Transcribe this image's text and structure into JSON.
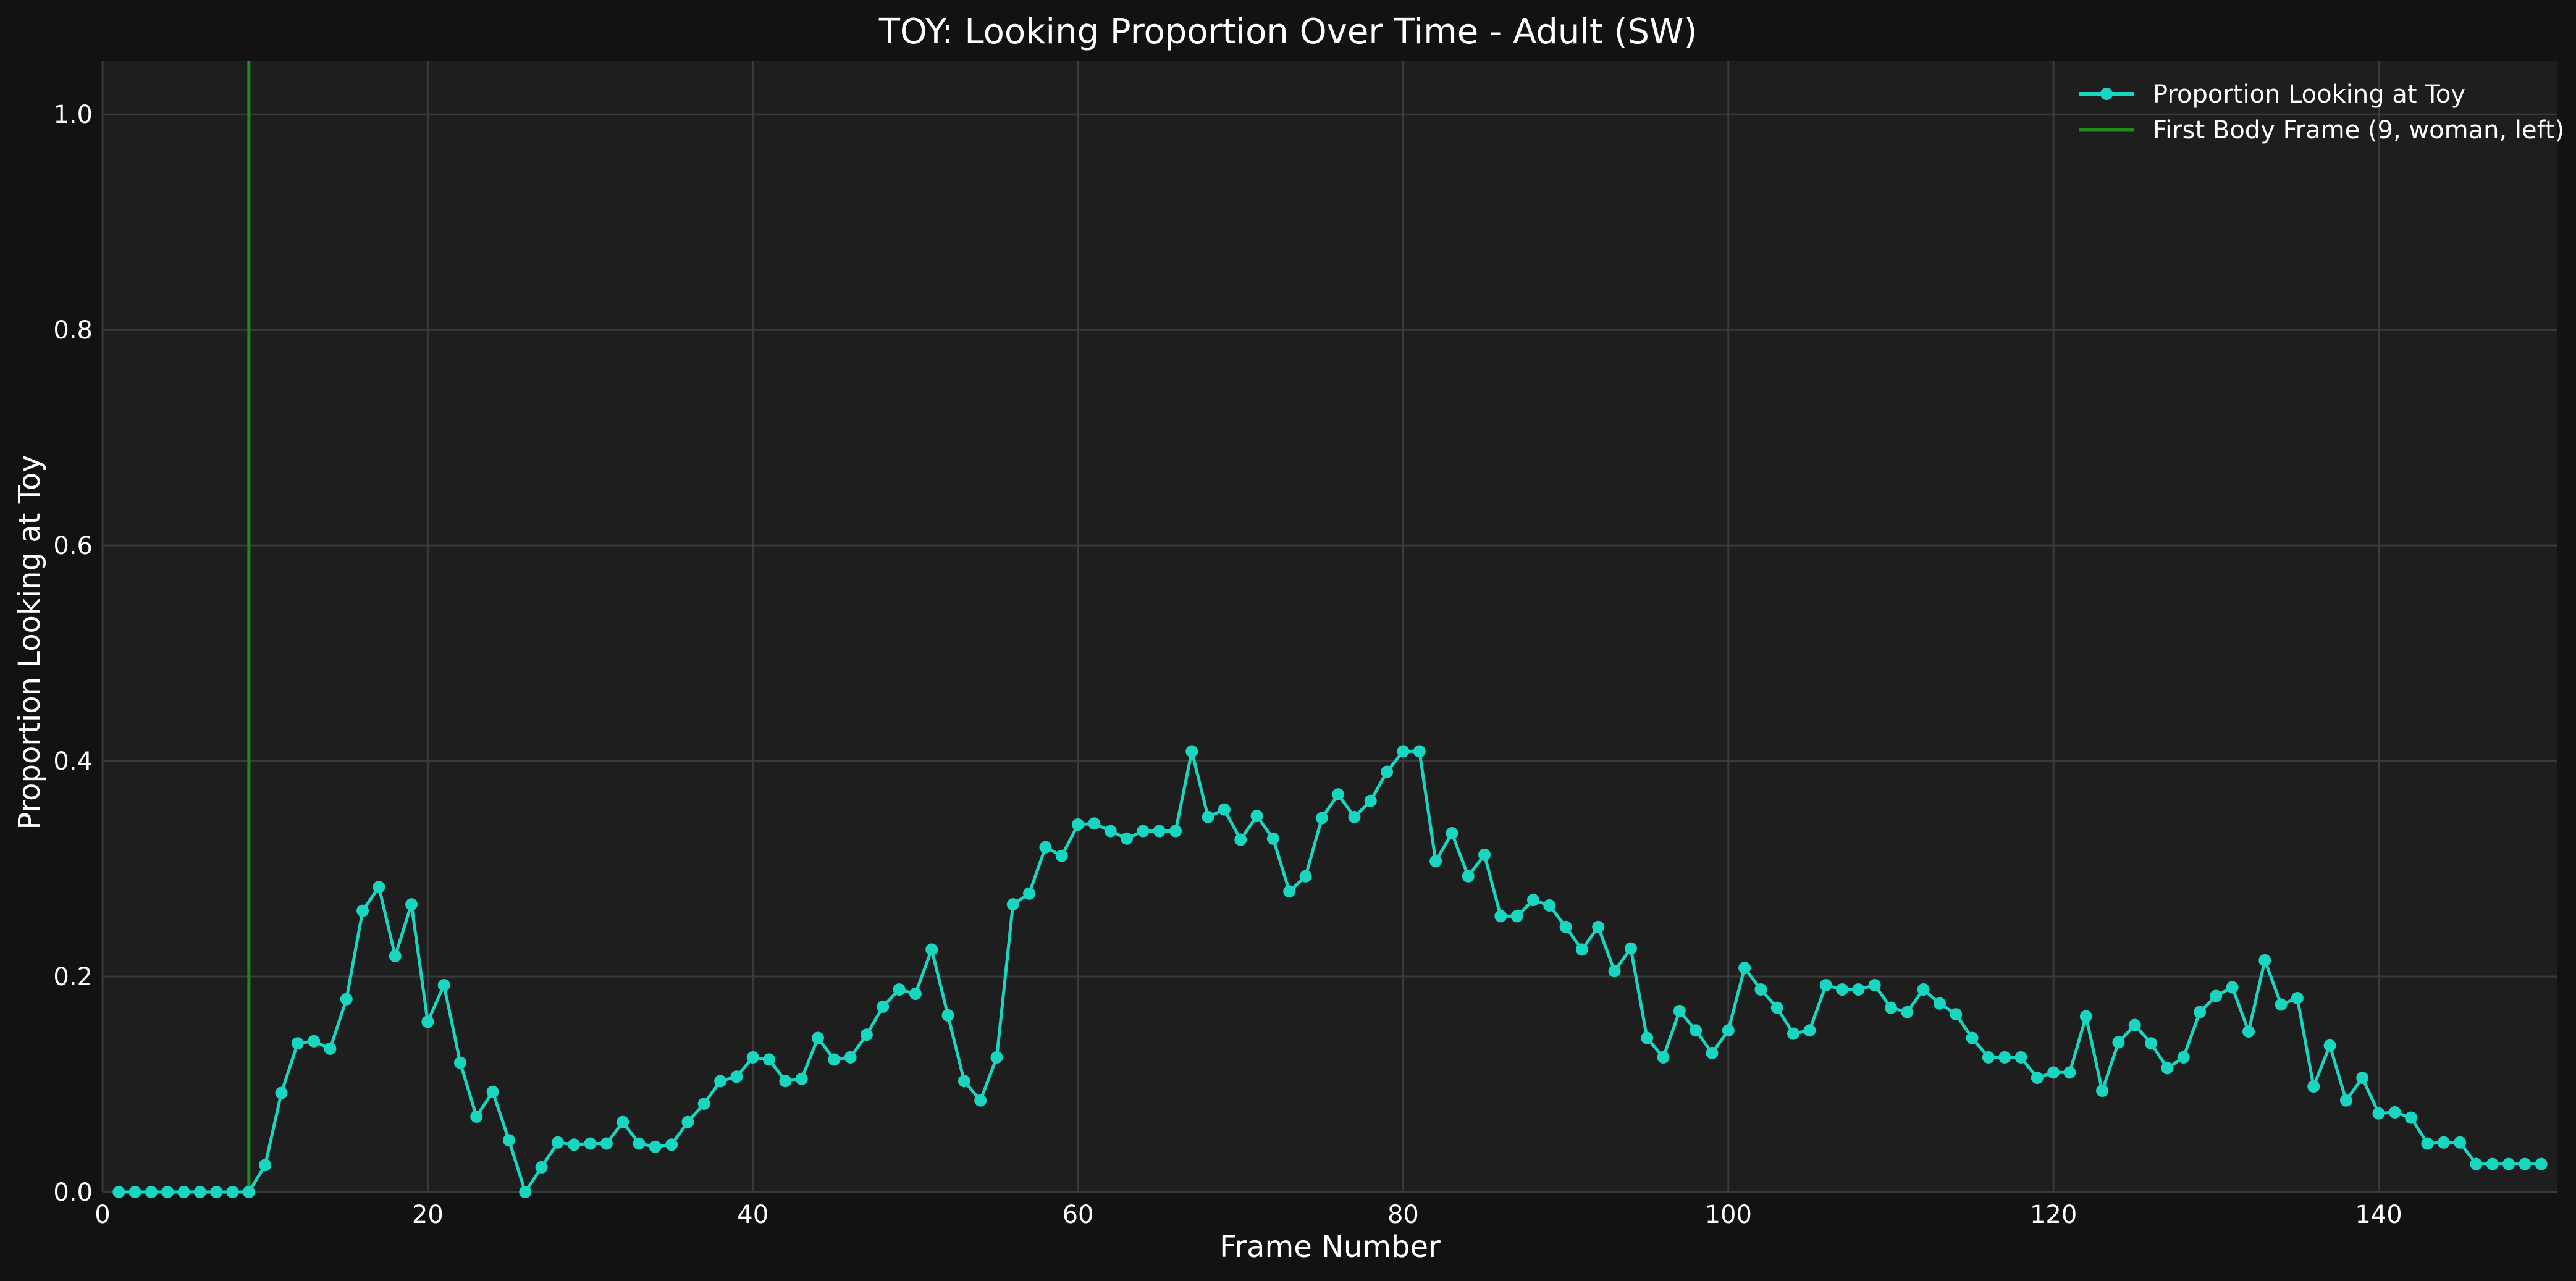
{
  "chart_data": {
    "type": "line",
    "title": "TOY: Looking Proportion Over Time - Adult (SW)",
    "xlabel": "Frame Number",
    "ylabel": "Proportion Looking at Toy",
    "xlim": [
      0,
      151
    ],
    "ylim": [
      0,
      1.05
    ],
    "xticks": [
      0,
      20,
      40,
      60,
      80,
      100,
      120,
      140
    ],
    "yticks": [
      0.0,
      0.2,
      0.4,
      0.6,
      0.8,
      1.0
    ],
    "grid": true,
    "legend_position": "top-right",
    "colors": {
      "background": "#121212",
      "plot_background": "#1e1e1e",
      "series": "#18d6c0",
      "marker_line": "#1a8c1a",
      "text": "#ffffff"
    },
    "series": [
      {
        "name": "Proportion Looking at Toy",
        "x": [
          1,
          2,
          3,
          4,
          5,
          6,
          7,
          8,
          9,
          10,
          11,
          12,
          13,
          14,
          15,
          16,
          17,
          18,
          19,
          20,
          21,
          22,
          23,
          24,
          25,
          26,
          27,
          28,
          29,
          30,
          31,
          32,
          33,
          34,
          35,
          36,
          37,
          38,
          39,
          40,
          41,
          42,
          43,
          44,
          45,
          46,
          47,
          48,
          49,
          50,
          51,
          52,
          53,
          54,
          55,
          56,
          57,
          58,
          59,
          60,
          61,
          62,
          63,
          64,
          65,
          66,
          67,
          68,
          69,
          70,
          71,
          72,
          73,
          74,
          75,
          76,
          77,
          78,
          79,
          80,
          81,
          82,
          83,
          84,
          85,
          86,
          87,
          88,
          89,
          90,
          91,
          92,
          93,
          94,
          95,
          96,
          97,
          98,
          99,
          100,
          101,
          102,
          103,
          104,
          105,
          106,
          107,
          108,
          109,
          110,
          111,
          112,
          113,
          114,
          115,
          116,
          117,
          118,
          119,
          120,
          121,
          122,
          123,
          124,
          125,
          126,
          127,
          128,
          129,
          130,
          131,
          132,
          133,
          134,
          135,
          136,
          137,
          138,
          139,
          140,
          141,
          142,
          143,
          144,
          145,
          146,
          147,
          148,
          149,
          150
        ],
        "values": [
          0,
          0,
          0,
          0,
          0,
          0,
          0,
          0,
          0,
          0.025,
          0.092,
          0.138,
          0.14,
          0.133,
          0.179,
          0.261,
          0.283,
          0.219,
          0.267,
          0.158,
          0.192,
          0.12,
          0.07,
          0.093,
          0.048,
          0,
          0.023,
          0.046,
          0.044,
          0.045,
          0.045,
          0.065,
          0.045,
          0.042,
          0.044,
          0.065,
          0.082,
          0.103,
          0.107,
          0.125,
          0.123,
          0.103,
          0.105,
          0.143,
          0.123,
          0.125,
          0.146,
          0.172,
          0.188,
          0.184,
          0.225,
          0.164,
          0.103,
          0.085,
          0.125,
          0.267,
          0.277,
          0.32,
          0.312,
          0.341,
          0.342,
          0.335,
          0.328,
          0.335,
          0.335,
          0.335,
          0.409,
          0.348,
          0.355,
          0.327,
          0.349,
          0.328,
          0.279,
          0.293,
          0.347,
          0.369,
          0.348,
          0.363,
          0.39,
          0.409,
          0.409,
          0.307,
          0.333,
          0.293,
          0.313,
          0.256,
          0.256,
          0.271,
          0.266,
          0.246,
          0.225,
          0.246,
          0.205,
          0.226,
          0.143,
          0.125,
          0.168,
          0.15,
          0.129,
          0.15,
          0.208,
          0.188,
          0.171,
          0.147,
          0.15,
          0.192,
          0.188,
          0.188,
          0.192,
          0.171,
          0.167,
          0.188,
          0.175,
          0.165,
          0.143,
          0.125,
          0.125,
          0.125,
          0.106,
          0.111,
          0.111,
          0.163,
          0.094,
          0.139,
          0.155,
          0.138,
          0.115,
          0.125,
          0.167,
          0.182,
          0.19,
          0.149,
          0.215,
          0.174,
          0.18,
          0.098,
          0.136,
          0.085,
          0.106,
          0.073,
          0.074,
          0.069,
          0.045,
          0.046,
          0.046,
          0.026,
          0.026,
          0.026,
          0.026,
          0.026
        ]
      },
      {
        "name": "First Body Frame (9, woman, left)",
        "type": "vline",
        "x": 9
      }
    ]
  }
}
